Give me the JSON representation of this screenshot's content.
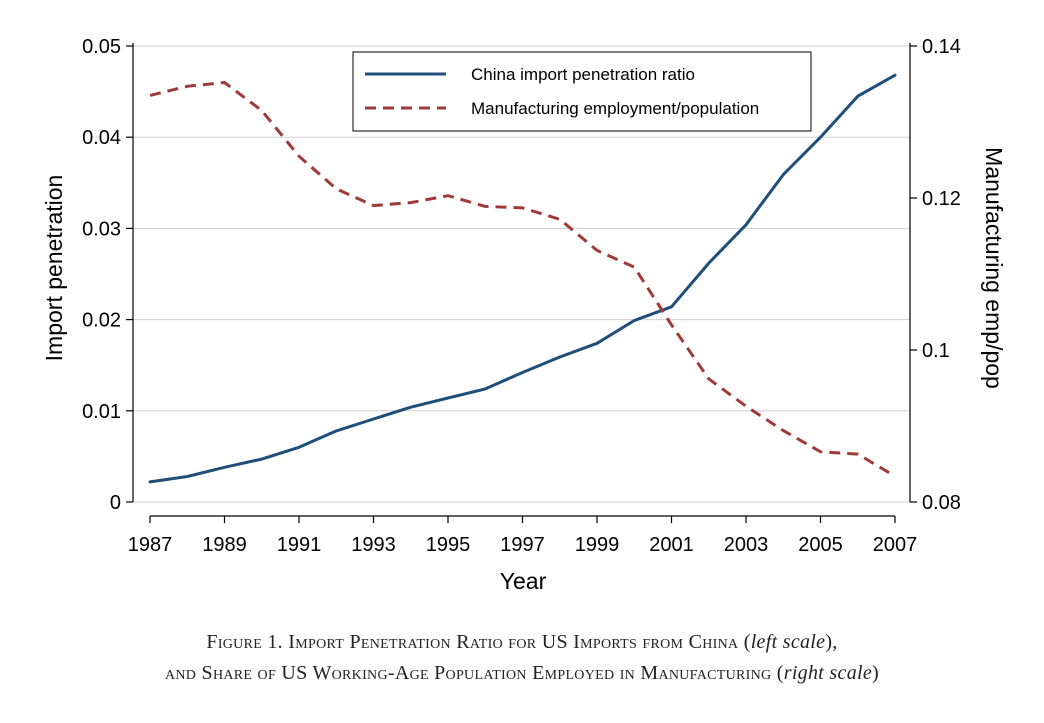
{
  "chart_data": {
    "type": "line",
    "title": "",
    "xlabel": "Year",
    "ylabel_left": "Import penetration",
    "ylabel_right": "Manufacturing emp/pop",
    "x": [
      1987,
      1988,
      1989,
      1990,
      1991,
      1992,
      1993,
      1994,
      1995,
      1996,
      1997,
      1998,
      1999,
      2000,
      2001,
      2002,
      2003,
      2004,
      2005,
      2006,
      2007
    ],
    "x_ticks": [
      "1987",
      "1989",
      "1991",
      "1993",
      "1995",
      "1997",
      "1999",
      "2001",
      "2003",
      "2005",
      "2007"
    ],
    "xlim": [
      1987,
      2007
    ],
    "ylim_left": [
      0,
      0.05
    ],
    "y_ticks_left": [
      "0",
      "0.01",
      "0.02",
      "0.03",
      "0.04",
      "0.05"
    ],
    "ylim_right": [
      0.08,
      0.14
    ],
    "y_ticks_right": [
      "0.08",
      "0.1",
      "0.12",
      "0.14"
    ],
    "grid": "horizontal",
    "legend_position": "top-right",
    "series": [
      {
        "name": "China import penetration ratio",
        "axis": "left",
        "color": "#1f4e79",
        "style": "solid",
        "values": [
          0.0022,
          0.0028,
          0.0038,
          0.0047,
          0.006,
          0.0078,
          0.0091,
          0.0104,
          0.0114,
          0.0124,
          0.0142,
          0.0159,
          0.0174,
          0.0199,
          0.0214,
          0.0262,
          0.0304,
          0.0359,
          0.04,
          0.0445,
          0.0468
        ]
      },
      {
        "name": "Manufacturing employment/population",
        "axis": "right",
        "color": "#9e3a3a",
        "style": "dashed",
        "values": [
          0.1335,
          0.1347,
          0.1352,
          0.1315,
          0.1255,
          0.1212,
          0.119,
          0.1194,
          0.1203,
          0.1189,
          0.1187,
          0.1172,
          0.1131,
          0.1109,
          0.1033,
          0.0962,
          0.0926,
          0.0894,
          0.0866,
          0.0863,
          0.0834
        ]
      }
    ]
  },
  "caption": {
    "line1_prefix": "Figure 1. Import Penetration Ratio for US Imports from China (",
    "line1_italic": "left scale",
    "line1_suffix": "),",
    "line2_prefix": "and Share of US Working-Age Population Employed in Manufacturing (",
    "line2_italic": "right scale",
    "line2_suffix": ")"
  }
}
